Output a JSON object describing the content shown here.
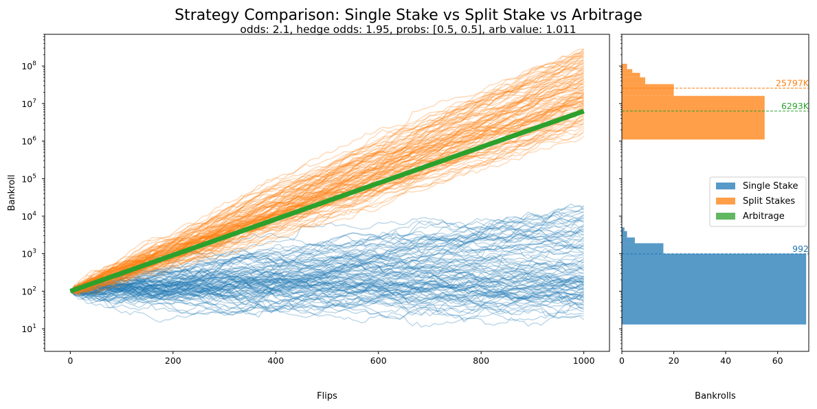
{
  "figure": {
    "title": "Strategy Comparison: Single Stake vs Split Stake vs Arbitrage",
    "subtitle": "odds: 2.1, hedge odds: 1.95, probs: [0.5, 0.5], arb value: 1.011"
  },
  "chart_data": [
    {
      "type": "line",
      "xlabel": "Flips",
      "ylabel": "Bankroll",
      "xlim": [
        -50,
        1050
      ],
      "ylim": [
        2.5,
        700000000
      ],
      "y_scale": "log",
      "x_ticks": [
        0,
        200,
        400,
        600,
        800,
        1000
      ],
      "y_ticks": [
        {
          "value": 10,
          "base": "10",
          "exp": "1"
        },
        {
          "value": 100,
          "base": "10",
          "exp": "2"
        },
        {
          "value": 1000,
          "base": "10",
          "exp": "3"
        },
        {
          "value": 10000,
          "base": "10",
          "exp": "4"
        },
        {
          "value": 100000,
          "base": "10",
          "exp": "5"
        },
        {
          "value": 1000000,
          "base": "10",
          "exp": "6"
        },
        {
          "value": 10000000,
          "base": "10",
          "exp": "7"
        },
        {
          "value": 100000000,
          "base": "10",
          "exp": "8"
        }
      ],
      "series": [
        {
          "color": "#1f77b4",
          "start": 100,
          "n_paths": 100,
          "final_range": [
            13,
            20000
          ],
          "median_final": 250
        },
        {
          "color": "#ff7f0e",
          "start": 100,
          "n_paths": 100,
          "final_range": [
            1000000,
            300000000
          ],
          "median_final": 20000000
        },
        {
          "color": "#2ca02c",
          "x": [
            0,
            1000
          ],
          "y": [
            100,
            6293000
          ]
        }
      ]
    },
    {
      "type": "bar",
      "orientation": "horizontal",
      "xlabel": "Bankrolls",
      "xlim": [
        0,
        72
      ],
      "x_ticks": [
        0,
        20,
        40,
        60
      ],
      "y_scale": "log",
      "legend_position": "center-right",
      "series": [
        {
          "name": "Single Stake",
          "color": "#1f77b4",
          "bins": [
            {
              "low": 13,
              "high": 1000,
              "count": 71
            },
            {
              "low": 1000,
              "high": 1900,
              "count": 16
            },
            {
              "low": 1900,
              "high": 2700,
              "count": 5
            },
            {
              "low": 2700,
              "high": 4000,
              "count": 2
            },
            {
              "low": 4000,
              "high": 5000,
              "count": 1
            }
          ],
          "mean_line": {
            "value": 992,
            "label": "992"
          }
        },
        {
          "name": "Split Stakes",
          "color": "#ff7f0e",
          "bins": [
            {
              "low": 1100000,
              "high": 16000000,
              "count": 55
            },
            {
              "low": 16000000,
              "high": 33000000,
              "count": 20
            },
            {
              "low": 33000000,
              "high": 50000000,
              "count": 9
            },
            {
              "low": 50000000,
              "high": 66000000,
              "count": 7
            },
            {
              "low": 66000000,
              "high": 83000000,
              "count": 4
            },
            {
              "low": 83000000,
              "high": 115000000,
              "count": 2
            }
          ],
          "mean_line": {
            "value": 25797000,
            "label": "25797K"
          }
        },
        {
          "name": "Arbitrage",
          "color": "#2ca02c",
          "bins": [],
          "mean_line": {
            "value": 6293000,
            "label": "6293K"
          }
        }
      ]
    }
  ]
}
